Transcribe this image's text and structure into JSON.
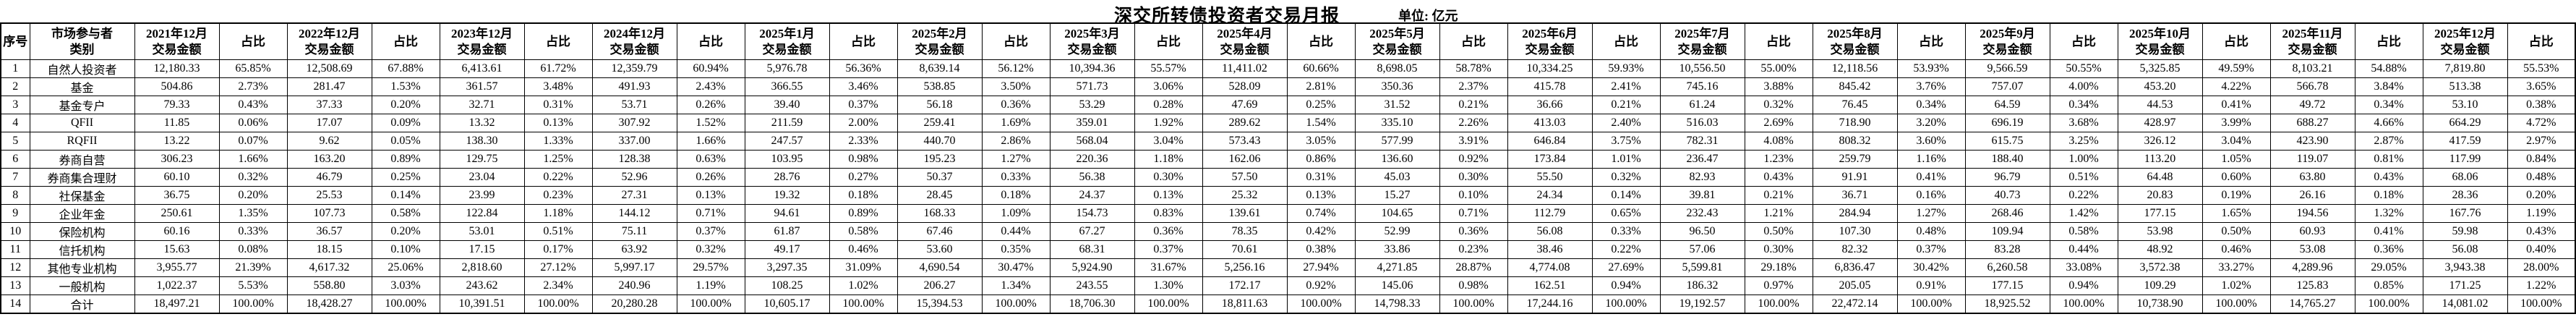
{
  "title": "深交所转债投资者交易月报",
  "unit_label": "单位: 亿元",
  "table": {
    "serial_header": "序号",
    "category_header": "市场参与者\n类别",
    "pct_header": "占比",
    "amount_headers": [
      "2021年12月\n交易金额",
      "2022年12月\n交易金额",
      "2023年12月\n交易金额",
      "2024年12月\n交易金额",
      "2025年1月\n交易金额",
      "2025年2月\n交易金额",
      "2025年3月\n交易金额",
      "2025年4月\n交易金额",
      "2025年5月\n交易金额",
      "2025年6月\n交易金额",
      "2025年7月\n交易金额",
      "2025年8月\n交易金额",
      "2025年9月\n交易金额",
      "2025年10月\n交易金额",
      "2025年11月\n交易金额",
      "2025年12月\n交易金额"
    ],
    "rows": [
      {
        "no": "1",
        "category": "自然人投资者",
        "cells": [
          "12,180.33",
          "65.85%",
          "12,508.69",
          "67.88%",
          "6,413.61",
          "61.72%",
          "12,359.79",
          "60.94%",
          "5,976.78",
          "56.36%",
          "8,639.14",
          "56.12%",
          "10,394.36",
          "55.57%",
          "11,411.02",
          "60.66%",
          "8,698.05",
          "58.78%",
          "10,334.25",
          "59.93%",
          "10,556.50",
          "55.00%",
          "12,118.56",
          "53.93%",
          "9,566.59",
          "50.55%",
          "5,325.85",
          "49.59%",
          "8,103.21",
          "54.88%",
          "7,819.80",
          "55.53%"
        ]
      },
      {
        "no": "2",
        "category": "基金",
        "cells": [
          "504.86",
          "2.73%",
          "281.47",
          "1.53%",
          "361.57",
          "3.48%",
          "491.93",
          "2.43%",
          "366.55",
          "3.46%",
          "538.85",
          "3.50%",
          "571.73",
          "3.06%",
          "528.09",
          "2.81%",
          "350.36",
          "2.37%",
          "415.78",
          "2.41%",
          "745.16",
          "3.88%",
          "845.42",
          "3.76%",
          "757.07",
          "4.00%",
          "453.20",
          "4.22%",
          "566.78",
          "3.84%",
          "513.38",
          "3.65%"
        ]
      },
      {
        "no": "3",
        "category": "基金专户",
        "cells": [
          "79.33",
          "0.43%",
          "37.33",
          "0.20%",
          "32.71",
          "0.31%",
          "53.71",
          "0.26%",
          "39.40",
          "0.37%",
          "56.18",
          "0.36%",
          "53.29",
          "0.28%",
          "47.69",
          "0.25%",
          "31.52",
          "0.21%",
          "36.66",
          "0.21%",
          "61.24",
          "0.32%",
          "76.45",
          "0.34%",
          "64.59",
          "0.34%",
          "44.53",
          "0.41%",
          "49.72",
          "0.34%",
          "53.10",
          "0.38%"
        ]
      },
      {
        "no": "4",
        "category": "QFII",
        "cells": [
          "11.85",
          "0.06%",
          "17.07",
          "0.09%",
          "13.32",
          "0.13%",
          "307.92",
          "1.52%",
          "211.59",
          "2.00%",
          "259.41",
          "1.69%",
          "359.01",
          "1.92%",
          "289.62",
          "1.54%",
          "335.10",
          "2.26%",
          "413.03",
          "2.40%",
          "516.03",
          "2.69%",
          "718.90",
          "3.20%",
          "696.19",
          "3.68%",
          "428.97",
          "3.99%",
          "688.27",
          "4.66%",
          "664.29",
          "4.72%"
        ]
      },
      {
        "no": "5",
        "category": "RQFII",
        "cells": [
          "13.22",
          "0.07%",
          "9.62",
          "0.05%",
          "138.30",
          "1.33%",
          "337.00",
          "1.66%",
          "247.57",
          "2.33%",
          "440.70",
          "2.86%",
          "568.04",
          "3.04%",
          "573.43",
          "3.05%",
          "577.99",
          "3.91%",
          "646.84",
          "3.75%",
          "782.31",
          "4.08%",
          "808.32",
          "3.60%",
          "615.75",
          "3.25%",
          "326.12",
          "3.04%",
          "423.90",
          "2.87%",
          "417.59",
          "2.97%"
        ]
      },
      {
        "no": "6",
        "category": "券商自营",
        "cells": [
          "306.23",
          "1.66%",
          "163.20",
          "0.89%",
          "129.75",
          "1.25%",
          "128.38",
          "0.63%",
          "103.95",
          "0.98%",
          "195.23",
          "1.27%",
          "220.36",
          "1.18%",
          "162.06",
          "0.86%",
          "136.60",
          "0.92%",
          "173.84",
          "1.01%",
          "236.47",
          "1.23%",
          "259.79",
          "1.16%",
          "188.40",
          "1.00%",
          "113.20",
          "1.05%",
          "119.07",
          "0.81%",
          "117.99",
          "0.84%"
        ]
      },
      {
        "no": "7",
        "category": "券商集合理财",
        "cells": [
          "60.10",
          "0.32%",
          "46.79",
          "0.25%",
          "23.04",
          "0.22%",
          "52.96",
          "0.26%",
          "28.76",
          "0.27%",
          "50.37",
          "0.33%",
          "56.38",
          "0.30%",
          "57.50",
          "0.31%",
          "45.03",
          "0.30%",
          "55.50",
          "0.32%",
          "82.93",
          "0.43%",
          "91.91",
          "0.41%",
          "96.79",
          "0.51%",
          "64.48",
          "0.60%",
          "63.80",
          "0.43%",
          "68.06",
          "0.48%"
        ]
      },
      {
        "no": "8",
        "category": "社保基金",
        "cells": [
          "36.75",
          "0.20%",
          "25.53",
          "0.14%",
          "23.99",
          "0.23%",
          "27.31",
          "0.13%",
          "19.32",
          "0.18%",
          "28.45",
          "0.18%",
          "24.37",
          "0.13%",
          "25.32",
          "0.13%",
          "15.27",
          "0.10%",
          "24.34",
          "0.14%",
          "39.81",
          "0.21%",
          "36.71",
          "0.16%",
          "40.73",
          "0.22%",
          "20.83",
          "0.19%",
          "26.16",
          "0.18%",
          "28.36",
          "0.20%"
        ]
      },
      {
        "no": "9",
        "category": "企业年金",
        "cells": [
          "250.61",
          "1.35%",
          "107.73",
          "0.58%",
          "122.84",
          "1.18%",
          "144.12",
          "0.71%",
          "94.61",
          "0.89%",
          "168.33",
          "1.09%",
          "154.73",
          "0.83%",
          "139.61",
          "0.74%",
          "104.65",
          "0.71%",
          "112.79",
          "0.65%",
          "232.43",
          "1.21%",
          "284.94",
          "1.27%",
          "268.46",
          "1.42%",
          "177.15",
          "1.65%",
          "194.56",
          "1.32%",
          "167.76",
          "1.19%"
        ]
      },
      {
        "no": "10",
        "category": "保险机构",
        "cells": [
          "60.16",
          "0.33%",
          "36.57",
          "0.20%",
          "53.01",
          "0.51%",
          "75.11",
          "0.37%",
          "61.87",
          "0.58%",
          "67.46",
          "0.44%",
          "67.27",
          "0.36%",
          "78.35",
          "0.42%",
          "52.99",
          "0.36%",
          "56.08",
          "0.33%",
          "96.50",
          "0.50%",
          "107.30",
          "0.48%",
          "109.94",
          "0.58%",
          "53.98",
          "0.50%",
          "60.93",
          "0.41%",
          "59.98",
          "0.43%"
        ]
      },
      {
        "no": "11",
        "category": "信托机构",
        "cells": [
          "15.63",
          "0.08%",
          "18.15",
          "0.10%",
          "17.15",
          "0.17%",
          "63.92",
          "0.32%",
          "49.17",
          "0.46%",
          "53.60",
          "0.35%",
          "68.31",
          "0.37%",
          "70.61",
          "0.38%",
          "33.86",
          "0.23%",
          "38.46",
          "0.22%",
          "57.06",
          "0.30%",
          "82.32",
          "0.37%",
          "83.28",
          "0.44%",
          "48.92",
          "0.46%",
          "53.08",
          "0.36%",
          "56.08",
          "0.40%"
        ]
      },
      {
        "no": "12",
        "category": "其他专业机构",
        "cells": [
          "3,955.77",
          "21.39%",
          "4,617.32",
          "25.06%",
          "2,818.60",
          "27.12%",
          "5,997.17",
          "29.57%",
          "3,297.35",
          "31.09%",
          "4,690.54",
          "30.47%",
          "5,924.90",
          "31.67%",
          "5,256.16",
          "27.94%",
          "4,271.85",
          "28.87%",
          "4,774.08",
          "27.69%",
          "5,599.81",
          "29.18%",
          "6,836.47",
          "30.42%",
          "6,260.58",
          "33.08%",
          "3,572.38",
          "33.27%",
          "4,289.96",
          "29.05%",
          "3,943.38",
          "28.00%"
        ]
      },
      {
        "no": "13",
        "category": "一般机构",
        "cells": [
          "1,022.37",
          "5.53%",
          "558.80",
          "3.03%",
          "243.62",
          "2.34%",
          "240.96",
          "1.19%",
          "108.25",
          "1.02%",
          "206.27",
          "1.34%",
          "243.55",
          "1.30%",
          "172.17",
          "0.92%",
          "145.06",
          "0.98%",
          "162.51",
          "0.94%",
          "186.32",
          "0.97%",
          "205.05",
          "0.91%",
          "177.15",
          "0.94%",
          "109.29",
          "1.02%",
          "125.83",
          "0.85%",
          "171.25",
          "1.22%"
        ]
      },
      {
        "no": "14",
        "category": "合计",
        "cells": [
          "18,497.21",
          "100.00%",
          "18,428.27",
          "100.00%",
          "10,391.51",
          "100.00%",
          "20,280.28",
          "100.00%",
          "10,605.17",
          "100.00%",
          "15,394.53",
          "100.00%",
          "18,706.30",
          "100.00%",
          "18,811.63",
          "100.00%",
          "14,798.33",
          "100.00%",
          "17,244.16",
          "100.00%",
          "19,192.57",
          "100.00%",
          "22,472.14",
          "100.00%",
          "18,925.52",
          "100.00%",
          "10,738.90",
          "100.00%",
          "14,765.27",
          "100.00%",
          "14,081.02",
          "100.00%"
        ]
      }
    ]
  }
}
